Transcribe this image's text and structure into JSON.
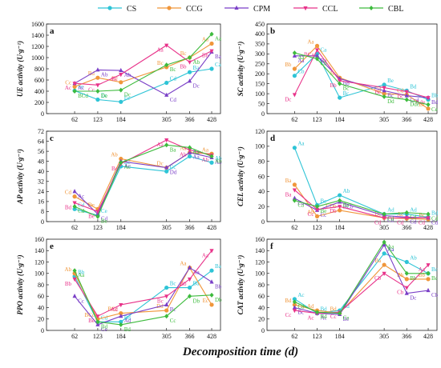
{
  "legend": [
    {
      "name": "CS",
      "color": "#2ec4d6",
      "marker": "circle"
    },
    {
      "name": "CCG",
      "color": "#f0963a",
      "marker": "circle"
    },
    {
      "name": "CPM",
      "color": "#7a3fc7",
      "marker": "triangle"
    },
    {
      "name": "CCL",
      "color": "#e8338a",
      "marker": "triangle-down"
    },
    {
      "name": "CBL",
      "color": "#3dbb3d",
      "marker": "diamond"
    }
  ],
  "x_axis_title": "Decomposition time (d)",
  "chart_data": [
    {
      "type": "line",
      "panel_label": "a",
      "ylabel": "UE activity  (U·g⁻¹)",
      "x": [
        62,
        123,
        184,
        305,
        366,
        428
      ],
      "ylim": [
        0,
        1600
      ],
      "yticks": [
        0,
        200,
        400,
        600,
        800,
        1000,
        1200,
        1400,
        1600
      ],
      "series": [
        {
          "name": "CS",
          "values": [
            410,
            250,
            210,
            550,
            740,
            800
          ],
          "labels": [
            "Fe",
            "Ec",
            "Ec",
            "Cd",
            "Ba",
            "Ca"
          ]
        },
        {
          "name": "CCG",
          "values": [
            480,
            640,
            560,
            830,
            1000,
            1250
          ],
          "labels": [
            "Cc",
            "Bd",
            "Cc",
            "Bc",
            "Bc",
            "Aa"
          ]
        },
        {
          "name": "CPM",
          "values": [
            540,
            780,
            770,
            330,
            580,
            1100
          ],
          "labels": [
            "Ac",
            "Ab",
            "Ab",
            "Cd",
            "Dc",
            "Ba"
          ]
        },
        {
          "name": "CCL",
          "values": [
            540,
            510,
            700,
            1220,
            920,
            1120
          ],
          "labels": [
            "Ac",
            "Cc",
            "Bc",
            "Aa",
            "Bb",
            "Bb"
          ]
        },
        {
          "name": "CBL",
          "values": [
            400,
            400,
            420,
            870,
            1000,
            1420
          ],
          "labels": [
            "BCd",
            "De",
            "Dc",
            "Bc",
            "Ab",
            "Aa"
          ]
        }
      ]
    },
    {
      "type": "line",
      "panel_label": "b",
      "ylabel": "SC activity  (U·g⁻¹)",
      "x": [
        62,
        123,
        184,
        305,
        366,
        428
      ],
      "ylim": [
        0,
        450
      ],
      "yticks": [
        0,
        50,
        100,
        150,
        200,
        250,
        300,
        350,
        400,
        450
      ],
      "series": [
        {
          "name": "CS",
          "values": [
            190,
            300,
            80,
            145,
            115,
            70
          ],
          "labels": [
            "Cb",
            "Ca",
            "Bc",
            "Be",
            "Bd",
            "Bb"
          ]
        },
        {
          "name": "CCG",
          "values": [
            225,
            340,
            180,
            100,
            95,
            25
          ],
          "labels": [
            "Bb",
            "Aa",
            "Bc",
            "Cd",
            "Cd",
            "Df"
          ]
        },
        {
          "name": "CPM",
          "values": [
            290,
            290,
            175,
            115,
            90,
            80
          ],
          "labels": [
            "Aa",
            "Ba",
            "Bb",
            "Bc",
            "Ccd",
            "Bd"
          ]
        },
        {
          "name": "CCL",
          "values": [
            95,
            320,
            165,
            130,
            110,
            80
          ],
          "labels": [
            "Dc",
            "BCa",
            "Bb",
            "Bc",
            "Bc",
            "Ade"
          ]
        },
        {
          "name": "CBL",
          "values": [
            305,
            275,
            150,
            85,
            70,
            45
          ],
          "labels": [
            "Aa",
            "Cb",
            "Bc",
            "Dd",
            "Dde",
            "Ce"
          ]
        }
      ]
    },
    {
      "type": "line",
      "panel_label": "c",
      "ylabel": "AP activity  (U·g⁻¹)",
      "x": [
        62,
        123,
        184,
        305,
        366,
        428
      ],
      "ylim": [
        0,
        72
      ],
      "yticks": [
        0,
        8,
        16,
        24,
        32,
        40,
        48,
        56,
        64,
        72
      ],
      "series": [
        {
          "name": "CS",
          "values": [
            10,
            5,
            44,
            40,
            52,
            47
          ],
          "labels": [
            "Cd",
            "Ce",
            "Bc",
            "Cc",
            "Ba",
            "Ab"
          ]
        },
        {
          "name": "CCG",
          "values": [
            20,
            10,
            50,
            43,
            55,
            54
          ],
          "labels": [
            "Cd",
            "De",
            "Ab",
            "Dc",
            "Aa",
            "Aa"
          ]
        },
        {
          "name": "CPM",
          "values": [
            24,
            6,
            48,
            43,
            55,
            51
          ],
          "labels": [
            "Ac",
            "Cd",
            "Ac",
            "Dd",
            "Aa",
            "Ab"
          ]
        },
        {
          "name": "CCL",
          "values": [
            15,
            8,
            46,
            65,
            57,
            53
          ],
          "labels": [
            "Bd",
            "Be",
            "Bc",
            "Aa",
            "Ab",
            "Ab"
          ]
        },
        {
          "name": "CBL",
          "values": [
            12,
            4,
            47,
            61,
            59,
            52
          ],
          "labels": [
            "Cd",
            "Be",
            "Ac",
            "Ba",
            "Aa",
            "Ab"
          ]
        }
      ]
    },
    {
      "type": "line",
      "panel_label": "d",
      "ylabel": "CEL activity  (U·g⁻¹)",
      "x": [
        62,
        123,
        184,
        305,
        366,
        428
      ],
      "ylim": [
        0,
        120
      ],
      "yticks": [
        0,
        20,
        40,
        60,
        80,
        100,
        120
      ],
      "series": [
        {
          "name": "CS",
          "values": [
            98,
            22,
            35,
            10,
            10,
            6
          ],
          "labels": [
            "Aa",
            "Bc",
            "Ab",
            "Ad",
            "Ad",
            "Bd"
          ]
        },
        {
          "name": "CCG",
          "values": [
            49,
            7,
            15,
            5,
            4,
            3
          ],
          "labels": [
            "Ba",
            "Ab",
            "CDb",
            "Bc",
            "Ac",
            "Bc"
          ]
        },
        {
          "name": "CPM",
          "values": [
            31,
            15,
            26,
            8,
            6,
            5
          ],
          "labels": [
            "Ca",
            "Cc",
            "BCb",
            "Cd",
            "Cd",
            "Cd"
          ]
        },
        {
          "name": "CCL",
          "values": [
            42,
            16,
            20,
            5,
            5,
            5
          ],
          "labels": [
            "Ba",
            "Cc",
            "Db",
            "Cd",
            "Cd",
            "Cd"
          ]
        },
        {
          "name": "CBL",
          "values": [
            28,
            20,
            28,
            10,
            12,
            10
          ],
          "labels": [
            "Ca",
            "Be",
            "Ba",
            "Cd",
            "Cd",
            "Cd"
          ]
        }
      ]
    },
    {
      "type": "line",
      "panel_label": "e",
      "ylabel": "PPO activity  (U·g⁻¹)",
      "x": [
        62,
        123,
        184,
        305,
        366,
        428
      ],
      "ylim": [
        0,
        160
      ],
      "yticks": [
        0,
        20,
        40,
        60,
        80,
        100,
        120,
        140,
        160
      ],
      "series": [
        {
          "name": "CS",
          "values": [
            95,
            15,
            15,
            75,
            75,
            105
          ],
          "labels": [
            "Bb",
            "Cd",
            "Bd",
            "Bc",
            "Ba",
            "Ba"
          ]
        },
        {
          "name": "CCG",
          "values": [
            100,
            20,
            30,
            35,
            110,
            45
          ],
          "labels": [
            "Ab",
            "BCc",
            "BCc",
            "Dd",
            "Aa",
            "Ec"
          ]
        },
        {
          "name": "CPM",
          "values": [
            60,
            10,
            25,
            45,
            110,
            85
          ],
          "labels": [
            "Cc",
            "Ce",
            "Ad",
            "Bc",
            "Aa",
            "Bb"
          ]
        },
        {
          "name": "CCL",
          "values": [
            90,
            25,
            45,
            60,
            90,
            140
          ],
          "labels": [
            "Bb",
            "Be",
            "Ad",
            "Bc",
            "Bb",
            "Aa"
          ]
        },
        {
          "name": "CBL",
          "values": [
            105,
            15,
            10,
            25,
            60,
            62
          ],
          "labels": [
            "Aa",
            "Bd",
            "Bd",
            "Cc",
            "Db",
            "Db"
          ]
        }
      ]
    },
    {
      "type": "line",
      "panel_label": "f",
      "ylabel": "CAT activity  (U·g⁻¹)",
      "x": [
        62,
        123,
        184,
        305,
        366,
        428
      ],
      "ylim": [
        0,
        160
      ],
      "yticks": [
        0,
        20,
        40,
        60,
        80,
        100,
        120,
        140,
        160
      ],
      "series": [
        {
          "name": "CS",
          "values": [
            55,
            30,
            35,
            135,
            120,
            100
          ],
          "labels": [
            "Ac",
            "Bd",
            "Cd",
            "Aa",
            "Ab",
            "Bc"
          ]
        },
        {
          "name": "CCG",
          "values": [
            45,
            35,
            30,
            115,
            90,
            90
          ],
          "labels": [
            "Bd",
            "Ad",
            "Bd",
            "Ba",
            "Bb",
            "Bb"
          ]
        },
        {
          "name": "CPM",
          "values": [
            40,
            30,
            28,
            150,
            65,
            70
          ],
          "labels": [
            "Bc",
            "Ac",
            "Be",
            "Aa",
            "Dc",
            "Cb"
          ]
        },
        {
          "name": "CCL",
          "values": [
            35,
            30,
            32,
            100,
            75,
            115
          ],
          "labels": [
            "Cc",
            "Ac",
            "Cc",
            "Cb",
            "Cb",
            "Aa"
          ]
        },
        {
          "name": "CBL",
          "values": [
            50,
            32,
            30,
            155,
            100,
            100
          ],
          "labels": [
            "Cd",
            "Bd",
            "Ce",
            "Aa",
            "Bb",
            "Bc"
          ]
        }
      ]
    }
  ]
}
